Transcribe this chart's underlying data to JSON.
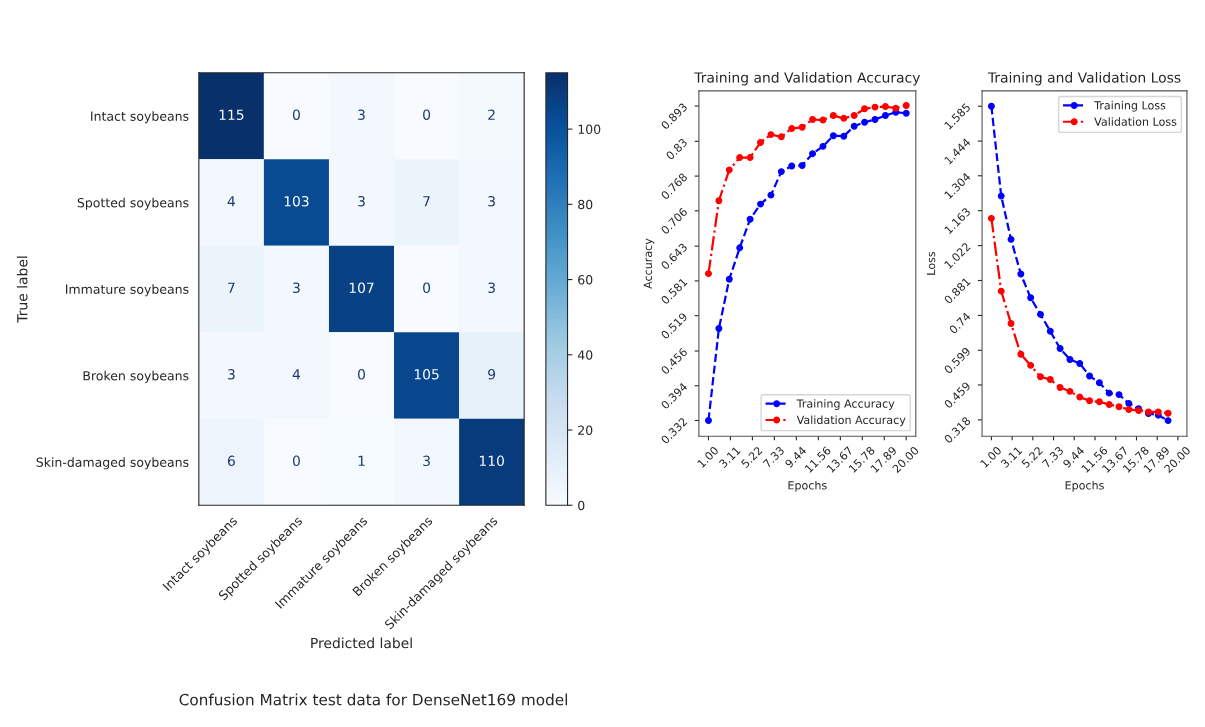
{
  "chart_data": [
    {
      "type": "heatmap",
      "xlabel": "Predicted label",
      "ylabel": "True label",
      "categories": [
        "Intact soybeans",
        "Spotted soybeans",
        "Immature soybeans",
        "Broken soybeans",
        "Skin-damaged soybeans"
      ],
      "y_categories": [
        "Intact soybeans",
        "Spotted soybeans",
        "Immature soybeans",
        "Broken soybeans",
        "Skin-damaged soybeans"
      ],
      "cells": [
        [
          115,
          0,
          3,
          0,
          2
        ],
        [
          4,
          103,
          3,
          7,
          3
        ],
        [
          7,
          3,
          107,
          0,
          3
        ],
        [
          3,
          4,
          0,
          105,
          9
        ],
        [
          6,
          0,
          1,
          3,
          110
        ]
      ],
      "data_labels": true,
      "clim": [
        0,
        115
      ],
      "cticks": [
        0,
        20,
        40,
        60,
        80,
        100
      ],
      "annotations": [
        "Confusion Matrix test data for DenseNet169 model"
      ]
    },
    {
      "type": "line",
      "title": "Training and Validation Accuracy",
      "xlabel": "Epochs",
      "ylabel": "Accuracy",
      "x": [
        1,
        2,
        3,
        4,
        5,
        6,
        7,
        8,
        9,
        10,
        11,
        12,
        13,
        14,
        15,
        16,
        17,
        18,
        19,
        20
      ],
      "series": [
        {
          "name": "Training Accuracy",
          "color": "#0000ff",
          "line_style": "dashed",
          "values": [
            0.332,
            0.496,
            0.584,
            0.64,
            0.691,
            0.718,
            0.734,
            0.776,
            0.786,
            0.787,
            0.808,
            0.821,
            0.84,
            0.839,
            0.857,
            0.864,
            0.869,
            0.876,
            0.882,
            0.88
          ]
        },
        {
          "name": "Validation Accuracy",
          "color": "#ff0000",
          "line_style": "dashdot",
          "values": [
            0.594,
            0.724,
            0.779,
            0.801,
            0.801,
            0.828,
            0.842,
            0.838,
            0.853,
            0.855,
            0.869,
            0.868,
            0.876,
            0.871,
            0.876,
            0.888,
            0.891,
            0.892,
            0.889,
            0.894
          ]
        }
      ],
      "marker": "circle",
      "legend": "bottom right",
      "grid": false,
      "xlim": [
        0.08,
        20.92
      ],
      "xticks": [
        {
          "value": 1,
          "label": "1.00"
        },
        {
          "value": 3.11,
          "label": "3.11"
        },
        {
          "value": 5.22,
          "label": "5.22"
        },
        {
          "value": 7.33,
          "label": "7.33"
        },
        {
          "value": 9.44,
          "label": "9.44"
        },
        {
          "value": 11.56,
          "label": "11.56"
        },
        {
          "value": 13.67,
          "label": "13.67"
        },
        {
          "value": 15.78,
          "label": "15.78"
        },
        {
          "value": 17.89,
          "label": "17.89"
        },
        {
          "value": 20,
          "label": "20.00"
        }
      ],
      "ylim": [
        0.304,
        0.92
      ],
      "yticks": [
        0.332,
        0.394,
        0.456,
        0.519,
        0.581,
        0.643,
        0.706,
        0.768,
        0.83,
        0.893
      ]
    },
    {
      "type": "line",
      "title": "Training and Validation Loss",
      "xlabel": "Epochs",
      "ylabel": "Loss",
      "x": [
        1,
        2,
        3,
        4,
        5,
        6,
        7,
        8,
        9,
        10,
        11,
        12,
        13,
        14,
        15,
        16,
        17,
        18,
        19
      ],
      "series": [
        {
          "name": "Training Loss",
          "color": "#0000ff",
          "line_style": "dashed",
          "values": [
            1.585,
            1.222,
            1.047,
            0.907,
            0.811,
            0.744,
            0.676,
            0.606,
            0.562,
            0.546,
            0.495,
            0.468,
            0.426,
            0.42,
            0.384,
            0.363,
            0.344,
            0.337,
            0.315
          ]
        },
        {
          "name": "Validation Loss",
          "color": "#ff0000",
          "line_style": "dashdot",
          "values": [
            1.132,
            0.838,
            0.707,
            0.583,
            0.538,
            0.492,
            0.481,
            0.449,
            0.433,
            0.41,
            0.395,
            0.391,
            0.38,
            0.371,
            0.36,
            0.356,
            0.35,
            0.35,
            0.345
          ]
        }
      ],
      "marker": "circle",
      "legend": "top right",
      "grid": false,
      "xlim": [
        0.05,
        20.92
      ],
      "xticks": [
        {
          "value": 1,
          "label": "1.00"
        },
        {
          "value": 3.11,
          "label": "3.11"
        },
        {
          "value": 5.22,
          "label": "5.22"
        },
        {
          "value": 7.33,
          "label": "7.33"
        },
        {
          "value": 9.44,
          "label": "9.44"
        },
        {
          "value": 11.56,
          "label": "11.56"
        },
        {
          "value": 13.67,
          "label": "13.67"
        },
        {
          "value": 15.78,
          "label": "15.78"
        },
        {
          "value": 17.89,
          "label": "17.89"
        },
        {
          "value": 20,
          "label": "20.00"
        }
      ],
      "ylim": [
        0.252,
        1.647
      ],
      "yticks": [
        0.318,
        0.459,
        0.599,
        0.74,
        0.881,
        1.022,
        1.163,
        1.304,
        1.444,
        1.585
      ]
    }
  ]
}
